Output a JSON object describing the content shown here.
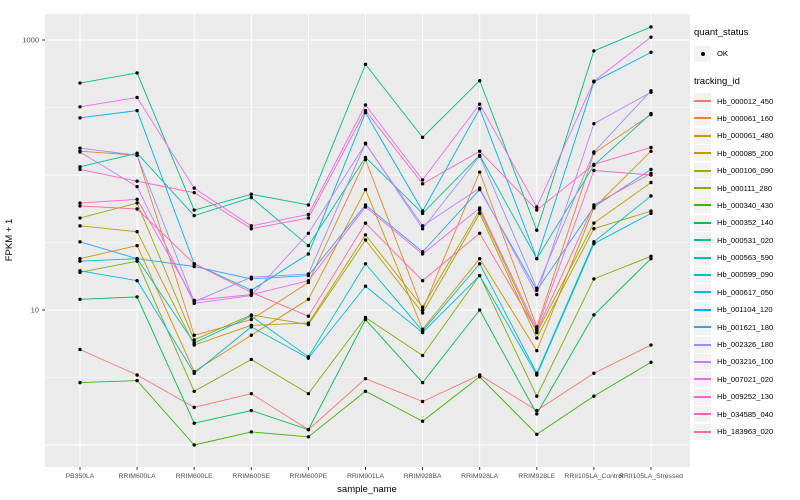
{
  "figure": {
    "background": "#FFFFFF",
    "panel_bg": "#EBEBEB",
    "grid_color": "#FFFFFF",
    "tick_text_color": "#4D4D4D",
    "axis_title_color": "#000000",
    "point_color": "#000000"
  },
  "legend": {
    "quant_status": {
      "title": "quant_status",
      "items": [
        {
          "label": "OK",
          "marker": "black-point"
        }
      ]
    },
    "tracking_id": {
      "title": "tracking_id"
    }
  },
  "chart_data": {
    "type": "line",
    "title": "",
    "xlabel": "sample_name",
    "ylabel": "FPKM + 1",
    "y_scale": "log10",
    "ylim": [
      0.69,
      1560
    ],
    "grid": true,
    "legend_position": "right",
    "y_breaks_labeled": [
      {
        "value": 1000,
        "label": "1000"
      },
      {
        "value": 10,
        "label": "10"
      }
    ],
    "y_gridlines_major": [
      1,
      10,
      100,
      1000
    ],
    "y_gridlines_minor": [
      3.162,
      31.62,
      316.2
    ],
    "categories": [
      "PB350LA",
      "RRIM600LA",
      "RRIM600LE",
      "RRIM600SE",
      "RRIM600PE",
      "RRIM901LA",
      "RRIM928BA",
      "RRIM928LA",
      "RRIM928LE",
      "RRII105LA_Control",
      "RRII105LA_Stressed"
    ],
    "series": [
      {
        "name": "Hb_000012_450",
        "color": "#F8766D",
        "values": [
          5.1,
          3.3,
          1.9,
          2.4,
          1.3,
          3.1,
          2.1,
          3.3,
          1.8,
          3.4,
          5.5
        ]
      },
      {
        "name": "Hb_000061_160",
        "color": "#EA8331",
        "values": [
          150,
          140,
          6.5,
          8.5,
          16,
          130,
          10,
          105,
          7.5,
          145,
          280
        ]
      },
      {
        "name": "Hb_000061_480",
        "color": "#D89000",
        "values": [
          24,
          30,
          3.5,
          6.5,
          12,
          78,
          7.2,
          24,
          5.0,
          57,
          150
        ]
      },
      {
        "name": "Hb_000085_200",
        "color": "#C09B00",
        "values": [
          42,
          38,
          5.5,
          7.7,
          8.0,
          36,
          10.5,
          55,
          6.8,
          44,
          88
        ]
      },
      {
        "name": "Hb_000106_090",
        "color": "#A3A500",
        "values": [
          48,
          62,
          6.0,
          9.2,
          7.8,
          33,
          9.5,
          52,
          6.2,
          40,
          54
        ]
      },
      {
        "name": "Hb_000111_280",
        "color": "#7CAE00",
        "values": [
          19,
          23,
          2.5,
          4.3,
          2.4,
          8.8,
          4.6,
          18,
          2.3,
          17,
          25
        ]
      },
      {
        "name": "Hb_000340_430",
        "color": "#39B600",
        "values": [
          2.9,
          3.0,
          1.0,
          1.25,
          1.15,
          2.5,
          1.5,
          3.2,
          1.2,
          2.3,
          4.1
        ]
      },
      {
        "name": "Hb_000352_140",
        "color": "#00BB4E",
        "values": [
          12,
          12.5,
          1.45,
          1.8,
          1.3,
          8.5,
          2.9,
          10,
          1.7,
          9.2,
          24
        ]
      },
      {
        "name": "Hb_000531_020",
        "color": "#00BF7D",
        "values": [
          480,
          570,
          55,
          72,
          60,
          660,
          190,
          500,
          39,
          830,
          1250
        ]
      },
      {
        "name": "Hb_000563_590",
        "color": "#00C1A3",
        "values": [
          115,
          145,
          50,
          68,
          30,
          135,
          52,
          140,
          24,
          118,
          285
        ]
      },
      {
        "name": "Hb_000599_090",
        "color": "#00BFC4",
        "values": [
          23,
          24,
          5.7,
          9.0,
          4.5,
          22,
          7.0,
          22,
          3.4,
          32,
          70
        ]
      },
      {
        "name": "Hb_000617_050",
        "color": "#00BAE0",
        "values": [
          19.5,
          16.5,
          3.4,
          7.5,
          4.4,
          15,
          6.8,
          18,
          3.3,
          31,
          52
        ]
      },
      {
        "name": "Hb_001104_120",
        "color": "#00B0F6",
        "values": [
          265,
          300,
          22,
          14,
          26,
          290,
          54,
          310,
          24,
          490,
          810
        ]
      },
      {
        "name": "Hb_001621_180",
        "color": "#35A2FF",
        "values": [
          32,
          24,
          21,
          17,
          18,
          60,
          27,
          78,
          14,
          58,
          110
        ]
      },
      {
        "name": "Hb_002326_180",
        "color": "#9590FF",
        "values": [
          158,
          140,
          11.5,
          17.5,
          18.5,
          172,
          40,
          138,
          14.5,
          148,
          420
        ]
      },
      {
        "name": "Hb_003216_100",
        "color": "#C77CFF",
        "values": [
          148,
          82,
          11.2,
          12.8,
          37,
          170,
          42,
          80,
          13,
          240,
          410
        ]
      },
      {
        "name": "Hb_007021_020",
        "color": "#E76BF3",
        "values": [
          320,
          375,
          80,
          42,
          51,
          330,
          92,
          335,
          58,
          495,
          1050
        ]
      },
      {
        "name": "Hb_009252_130",
        "color": "#FA62DB",
        "values": [
          62,
          66,
          11.8,
          13,
          16.5,
          58,
          26,
          57,
          7.2,
          108,
          100
        ]
      },
      {
        "name": "Hb_034585_040",
        "color": "#FF62BC",
        "values": [
          110,
          90,
          74,
          40,
          48,
          300,
          86,
          150,
          55,
          120,
          160
        ]
      },
      {
        "name": "Hb_183963_020",
        "color": "#FF6A98",
        "values": [
          59,
          56,
          22,
          13.5,
          9.0,
          44,
          16.5,
          37,
          7.0,
          60,
          103
        ]
      }
    ]
  }
}
